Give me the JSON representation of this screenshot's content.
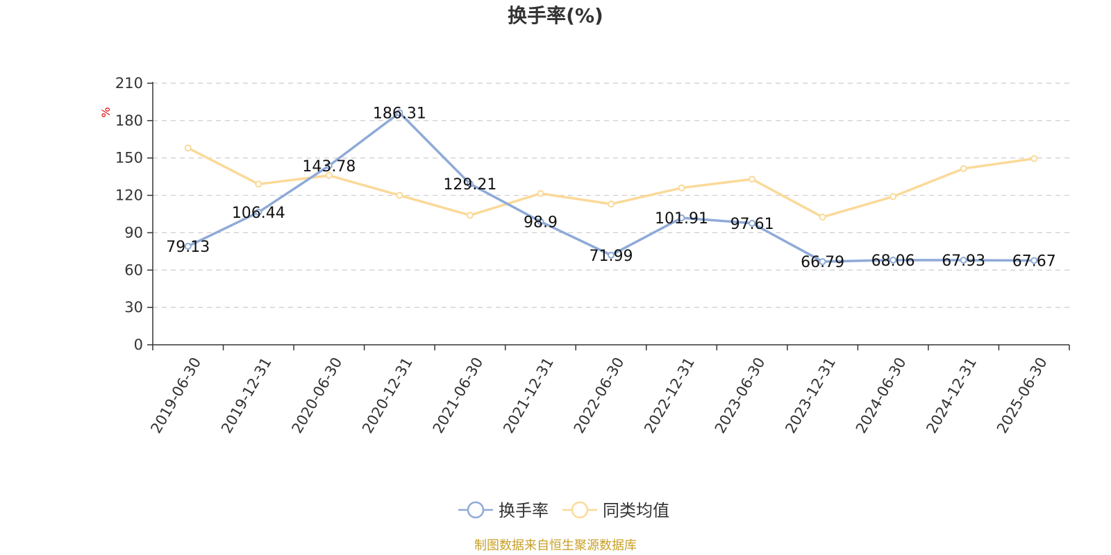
{
  "chart_data": {
    "type": "line",
    "title": "换手率(%)",
    "unit": "%",
    "categories": [
      "2019-06-30",
      "2019-12-31",
      "2020-06-30",
      "2020-12-31",
      "2021-06-30",
      "2021-12-31",
      "2022-06-30",
      "2022-12-31",
      "2023-06-30",
      "2023-12-31",
      "2024-06-30",
      "2024-12-31",
      "2025-06-30"
    ],
    "series": [
      {
        "name": "换手率",
        "color": "#8eaad7",
        "values": [
          79.13,
          106.44,
          143.78,
          186.31,
          129.21,
          98.9,
          71.99,
          101.91,
          97.61,
          66.79,
          68.06,
          67.93,
          67.67
        ],
        "labels": [
          "79.13",
          "106.44",
          "143.78",
          "186.31",
          "129.21",
          "98.9",
          "71.99",
          "101.91",
          "97.61",
          "66.79",
          "68.06",
          "67.93",
          "67.67"
        ],
        "show_labels": true
      },
      {
        "name": "同类均值",
        "color": "#fbd998",
        "values": [
          158,
          129,
          136,
          120,
          104,
          121.5,
          113,
          126,
          133,
          102.5,
          119,
          141.5,
          149.5
        ],
        "show_labels": false
      }
    ],
    "yticks": [
      0,
      30,
      60,
      90,
      120,
      150,
      180,
      210
    ],
    "ylim": [
      0,
      210
    ],
    "grid": true,
    "legend_position": "bottom-center"
  },
  "source_note": "制图数据来自恒生聚源数据库",
  "source_color": "#c8a028"
}
